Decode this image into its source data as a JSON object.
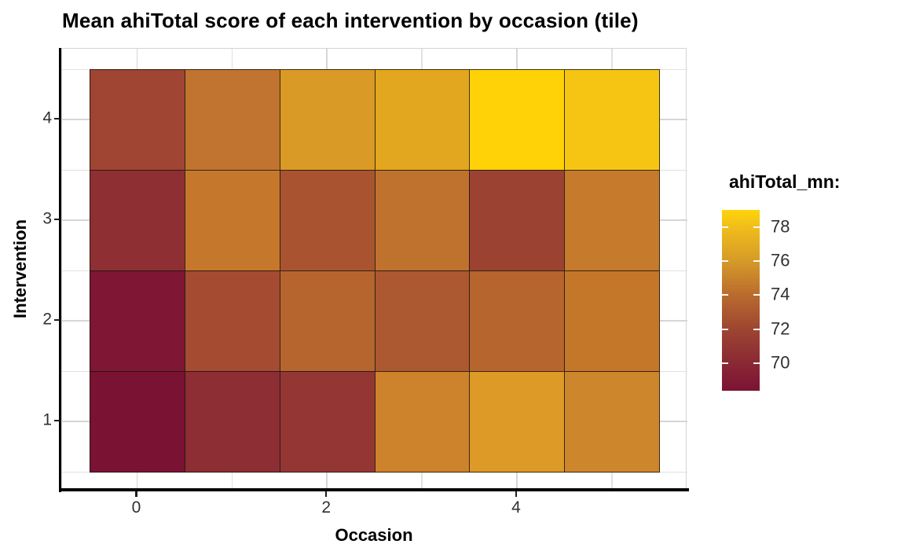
{
  "title": {
    "text": "Mean ahiTotal score of each intervention by occasion (tile)"
  },
  "axes": {
    "x": {
      "label": "Occasion",
      "tick_labels": [
        "0",
        "2",
        "4"
      ],
      "tick_values": [
        0,
        2,
        4
      ]
    },
    "y": {
      "label": "Intervention",
      "tick_labels": [
        "4",
        "3",
        "2",
        "1"
      ],
      "tick_values": [
        4,
        3,
        2,
        1
      ]
    }
  },
  "legend": {
    "title": "ahiTotal_mn:",
    "tick_labels": [
      "78",
      "76",
      "74",
      "72",
      "70"
    ],
    "tick_values": [
      78,
      76,
      74,
      72,
      70
    ]
  },
  "chart_data": {
    "type": "heatmap",
    "title": "Mean ahiTotal score of each intervention by occasion (tile)",
    "xlabel": "Occasion",
    "ylabel": "Intervention",
    "x_values": [
      0,
      1,
      2,
      3,
      4,
      5
    ],
    "x_labeled_ticks": [
      0,
      2,
      4
    ],
    "y_labeled_ticks": [
      4,
      3,
      2,
      1
    ],
    "x_tile_extent": [
      -0.5,
      5.5
    ],
    "y_tile_extent": [
      0.5,
      4.5
    ],
    "grid": "on",
    "legend_position": "right",
    "rows": [
      {
        "intervention": 4,
        "values": [
          71.9,
          74.6,
          76.2,
          76.8,
          79.0,
          78.3
        ],
        "colors": [
          "#A04434",
          "#C1742F",
          "#DA9A26",
          "#E2A71F",
          "#FFD107",
          "#F6C514"
        ]
      },
      {
        "intervention": 3,
        "values": [
          70.4,
          74.8,
          72.8,
          74.4,
          71.9,
          74.9
        ],
        "colors": [
          "#8E3033",
          "#C5782B",
          "#A95330",
          "#BF712E",
          "#9C4232",
          "#C67A2B"
        ]
      },
      {
        "intervention": 2,
        "values": [
          68.7,
          72.3,
          73.7,
          73.1,
          73.7,
          74.6
        ],
        "colors": [
          "#7E1634",
          "#A44B31",
          "#B6652F",
          "#AC5830",
          "#B6652E",
          "#C47629"
        ]
      },
      {
        "intervention": 1,
        "values": [
          68.4,
          70.4,
          70.9,
          75.4,
          76.4,
          75.5
        ],
        "colors": [
          "#7A1233",
          "#8D2D34",
          "#943734",
          "#CC832B",
          "#DD9A26",
          "#CE862C"
        ]
      }
    ],
    "fill_scale": {
      "name": "ahiTotal_mn:",
      "domain": [
        68.4,
        79.0
      ],
      "legend_ticks": [
        78,
        76,
        74,
        72,
        70
      ],
      "gradient_stops": [
        {
          "value": 68.4,
          "color": "#7B1333"
        },
        {
          "value": 70.0,
          "color": "#8A2834"
        },
        {
          "value": 72.0,
          "color": "#9D4531"
        },
        {
          "value": 74.0,
          "color": "#B96B2E"
        },
        {
          "value": 76.0,
          "color": "#D69A28"
        },
        {
          "value": 78.0,
          "color": "#F0BE1B"
        },
        {
          "value": 79.0,
          "color": "#FFD40A"
        }
      ]
    }
  }
}
